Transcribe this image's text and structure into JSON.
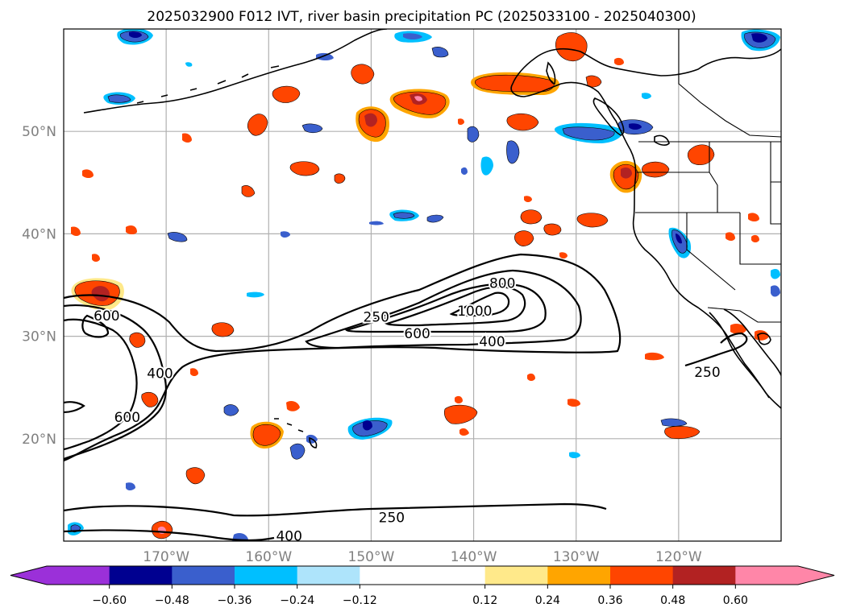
{
  "title": "2025032900 F012 IVT, river basin precipitation PC (2025033100 - 2025040300)",
  "map": {
    "lon_range": [
      -180,
      -110
    ],
    "lat_range": [
      10,
      60
    ],
    "lat_gridlines": [
      20,
      30,
      40,
      50
    ],
    "lat_labels": [
      "20°N",
      "30°N",
      "40°N",
      "50°N"
    ],
    "lon_gridlines": [
      -170,
      -160,
      -150,
      -140,
      -130,
      -120
    ],
    "lon_labels": [
      "170°W",
      "160°W",
      "150°W",
      "140°W",
      "130°W",
      "120°W"
    ],
    "label_color": "#808080"
  },
  "ivt_contour_labels": [
    {
      "text": "250",
      "lon": -149.5,
      "lat": 31.9
    },
    {
      "text": "800",
      "lon": -137.2,
      "lat": 35.2
    },
    {
      "text": "1000",
      "lon": -139.9,
      "lat": 32.5
    },
    {
      "text": "600",
      "lon": -145.5,
      "lat": 30.3
    },
    {
      "text": "400",
      "lon": -138.2,
      "lat": 29.5
    },
    {
      "text": "600",
      "lon": -175.8,
      "lat": 32.0
    },
    {
      "text": "400",
      "lon": -170.6,
      "lat": 26.4
    },
    {
      "text": "600",
      "lon": -173.8,
      "lat": 22.1
    },
    {
      "text": "250",
      "lon": -117.2,
      "lat": 26.5
    },
    {
      "text": "250",
      "lon": -148.0,
      "lat": 12.3
    },
    {
      "text": "400",
      "lon": -158.0,
      "lat": 10.5
    }
  ],
  "colorbar": {
    "boundaries": [
      -0.72,
      -0.6,
      -0.48,
      -0.36,
      -0.24,
      -0.12,
      0.12,
      0.24,
      0.36,
      0.48,
      0.6,
      0.72
    ],
    "colors": [
      "#9b30d9",
      "#000090",
      "#3a5fcd",
      "#00bfff",
      "#aee4fb",
      "#ffffff",
      "#ffe98a",
      "#ffa500",
      "#ff4500",
      "#b22222",
      "#ff86a8"
    ],
    "under_color": "#9b30d9",
    "over_color": "#ff86a8",
    "extend": "both",
    "tick_labels": [
      "−0.60",
      "−0.48",
      "−0.36",
      "−0.24",
      "−0.12",
      "0.12",
      "0.24",
      "0.36",
      "0.48",
      "0.60"
    ]
  }
}
